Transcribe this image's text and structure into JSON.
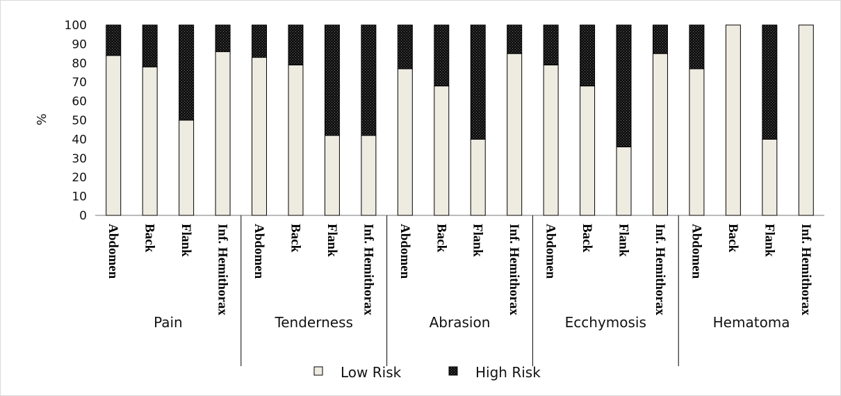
{
  "chart_data": {
    "type": "bar",
    "stacked": true,
    "ylabel": "%",
    "ylim": [
      0,
      100
    ],
    "yticks": [
      "0",
      "10",
      "20",
      "30",
      "40",
      "50",
      "60",
      "70",
      "80",
      "90",
      "100"
    ],
    "groups": [
      {
        "label": "Pain",
        "categories": [
          "Abdomen",
          "Back",
          "Flank",
          "Inf. Hemithorax"
        ],
        "low_risk": [
          84,
          78,
          50,
          86
        ],
        "high_risk": [
          16,
          22,
          50,
          14
        ]
      },
      {
        "label": "Tenderness",
        "categories": [
          "Abdomen",
          "Back",
          "Flank",
          "Inf. Hemithorax"
        ],
        "low_risk": [
          83,
          79,
          42,
          42
        ],
        "high_risk": [
          17,
          21,
          58,
          58
        ]
      },
      {
        "label": "Abrasion",
        "categories": [
          "Abdomen",
          "Back",
          "Flank",
          "Inf. Hemithorax"
        ],
        "low_risk": [
          77,
          68,
          40,
          85
        ],
        "high_risk": [
          23,
          32,
          60,
          15
        ]
      },
      {
        "label": "Ecchymosis",
        "categories": [
          "Abdomen",
          "Back",
          "Flank",
          "Inf. Hemithorax"
        ],
        "low_risk": [
          79,
          68,
          36,
          85
        ],
        "high_risk": [
          21,
          32,
          64,
          15
        ]
      },
      {
        "label": "Hematoma",
        "categories": [
          "Abdomen",
          "Back",
          "Flank",
          "Inf. Hemithorax"
        ],
        "low_risk": [
          77,
          100,
          40,
          100
        ],
        "high_risk": [
          23,
          0,
          60,
          0
        ]
      }
    ],
    "series": [
      {
        "name": "Low Risk",
        "key": "low_risk",
        "color": "#eeebe1",
        "pattern": "solid"
      },
      {
        "name": "High Risk",
        "key": "high_risk",
        "color": "#111111",
        "pattern": "dotted-dark"
      }
    ],
    "legend_position": "bottom",
    "grid": false
  }
}
